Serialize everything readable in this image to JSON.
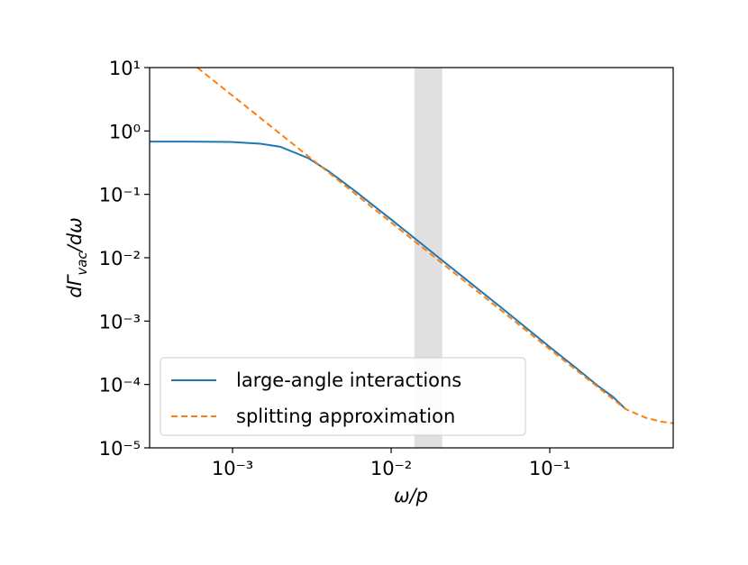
{
  "chart_data": {
    "type": "line",
    "xlabel": "ω/p",
    "ylabel": {
      "prefix": "dΓ",
      "sub": "vac",
      "suffix": "/dω"
    },
    "xscale": "log",
    "yscale": "log",
    "xlim": [
      0.0003,
      0.6
    ],
    "ylim": [
      1e-05,
      10
    ],
    "xticks": [
      {
        "value": 0.001,
        "label": "10⁻³"
      },
      {
        "value": 0.01,
        "label": "10⁻²"
      },
      {
        "value": 0.1,
        "label": "10⁻¹"
      }
    ],
    "yticks": [
      {
        "value": 10,
        "label": "10¹"
      },
      {
        "value": 1,
        "label": "10⁰"
      },
      {
        "value": 0.1,
        "label": "10⁻¹"
      },
      {
        "value": 0.01,
        "label": "10⁻²"
      },
      {
        "value": 0.001,
        "label": "10⁻³"
      },
      {
        "value": 0.0001,
        "label": "10⁻⁴"
      },
      {
        "value": 1e-05,
        "label": "10⁻⁵"
      }
    ],
    "shaded_region": {
      "x": [
        0.014,
        0.021
      ],
      "color": "#e0e0e0"
    },
    "legend": "lower left",
    "series": [
      {
        "name": "large-angle interactions",
        "color": "#1f77b4",
        "dash": "solid",
        "x": [
          0.0003,
          0.0005,
          0.001,
          0.0015,
          0.002,
          0.003,
          0.004,
          0.006,
          0.01,
          0.015,
          0.02,
          0.03,
          0.05,
          0.1,
          0.15,
          0.2,
          0.25,
          0.3
        ],
        "values": [
          0.68,
          0.68,
          0.67,
          0.63,
          0.563,
          0.373,
          0.235,
          0.11,
          0.0401,
          0.0178,
          0.01,
          0.00444,
          0.0016,
          0.00039,
          0.000174,
          9.6e-05,
          6.4e-05,
          4.1e-05
        ]
      },
      {
        "name": "splitting approximation",
        "color": "#ff7f0e",
        "dash": "dashed",
        "x": [
          0.0006,
          0.001,
          0.002,
          0.004,
          0.01,
          0.02,
          0.05,
          0.1,
          0.2,
          0.3,
          0.4,
          0.5,
          0.6
        ],
        "values": [
          10,
          3.6,
          0.9,
          0.225,
          0.036,
          0.009,
          0.00144,
          0.00036,
          9.2e-05,
          4.1e-05,
          3e-05,
          2.6e-05,
          2.45e-05
        ]
      }
    ]
  }
}
